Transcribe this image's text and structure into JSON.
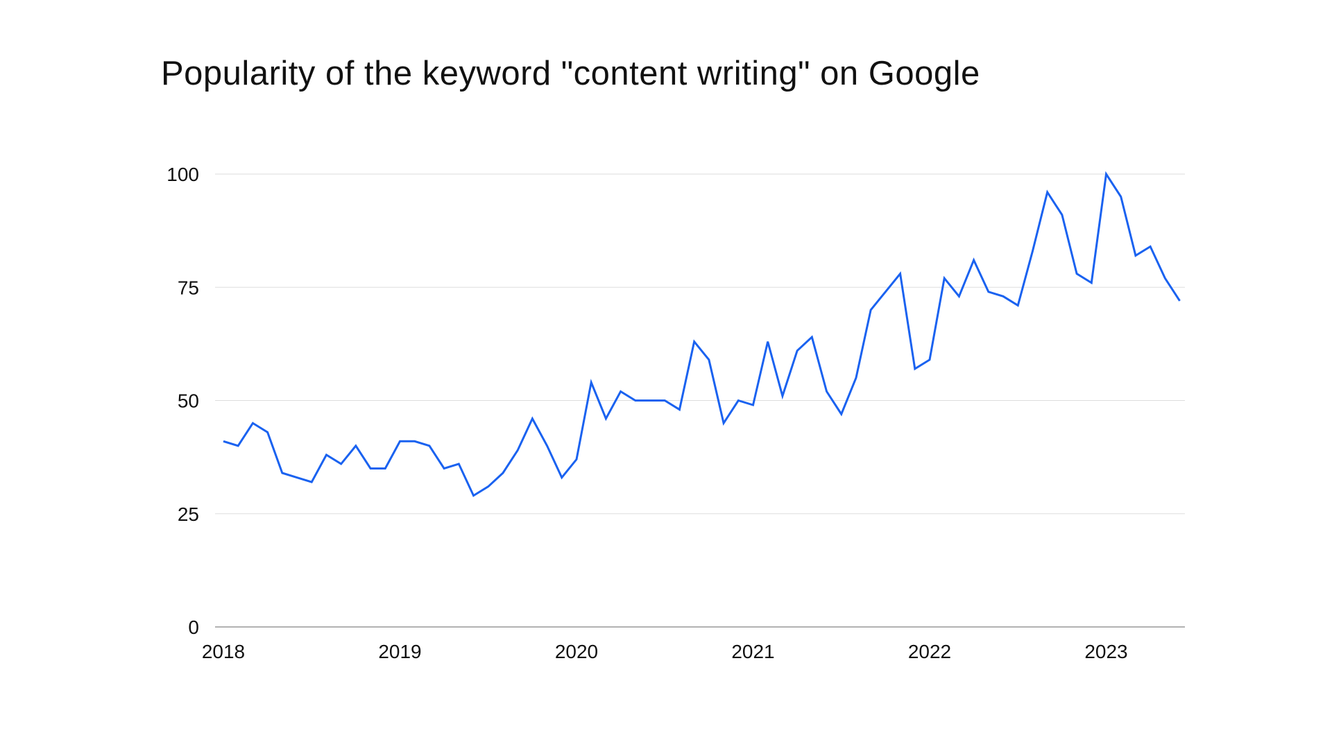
{
  "chart_data": {
    "type": "line",
    "title": "Popularity of the keyword \"content writing\" on Google",
    "xlabel": "",
    "ylabel": "",
    "x_start": "2018-01",
    "x_step": "month",
    "xticks": [
      "2018",
      "2019",
      "2020",
      "2021",
      "2022",
      "2023"
    ],
    "yticks": [
      0,
      25,
      50,
      75,
      100
    ],
    "xlim": [
      "2018-01",
      "2023-06"
    ],
    "ylim": [
      0,
      100
    ],
    "grid": "horizontal",
    "legend": "none",
    "line_color": "#1a62f0",
    "series": [
      {
        "values": [
          41,
          40,
          45,
          43,
          34,
          33,
          32,
          38,
          36,
          40,
          35,
          35,
          41,
          41,
          40,
          35,
          36,
          29,
          31,
          34,
          39,
          46,
          40,
          33,
          37,
          54,
          46,
          52,
          50,
          50,
          50,
          48,
          63,
          59,
          45,
          50,
          49,
          63,
          51,
          61,
          64,
          52,
          47,
          55,
          70,
          74,
          78,
          57,
          59,
          77,
          73,
          81,
          74,
          73,
          71,
          83,
          96,
          91,
          78,
          76,
          100,
          95,
          82,
          84,
          77,
          72
        ]
      }
    ]
  }
}
